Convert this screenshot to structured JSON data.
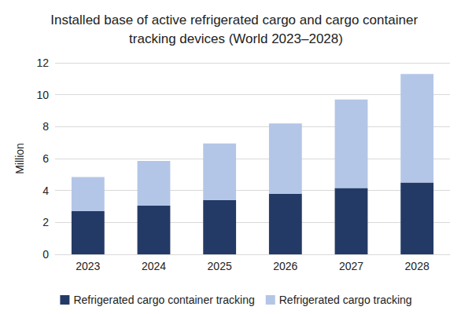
{
  "chart_data": {
    "type": "bar",
    "title": "Installed base of active refrigerated cargo and cargo container tracking devices (World 2023–2028)",
    "ylabel": "Million",
    "categories": [
      "2023",
      "2024",
      "2025",
      "2026",
      "2027",
      "2028"
    ],
    "series": [
      {
        "name": "Refrigerated cargo container tracking",
        "color": "#243a66",
        "values": [
          2.7,
          3.05,
          3.4,
          3.8,
          4.15,
          4.5
        ]
      },
      {
        "name": "Refrigerated cargo tracking",
        "color": "#b4c6e7",
        "values": [
          2.15,
          2.8,
          3.55,
          4.4,
          5.55,
          6.8
        ]
      }
    ],
    "ylim": [
      0,
      12
    ],
    "yticks": [
      0,
      2,
      4,
      6,
      8,
      10,
      12
    ],
    "stacked": true,
    "grid": true,
    "legend": "bottom"
  }
}
